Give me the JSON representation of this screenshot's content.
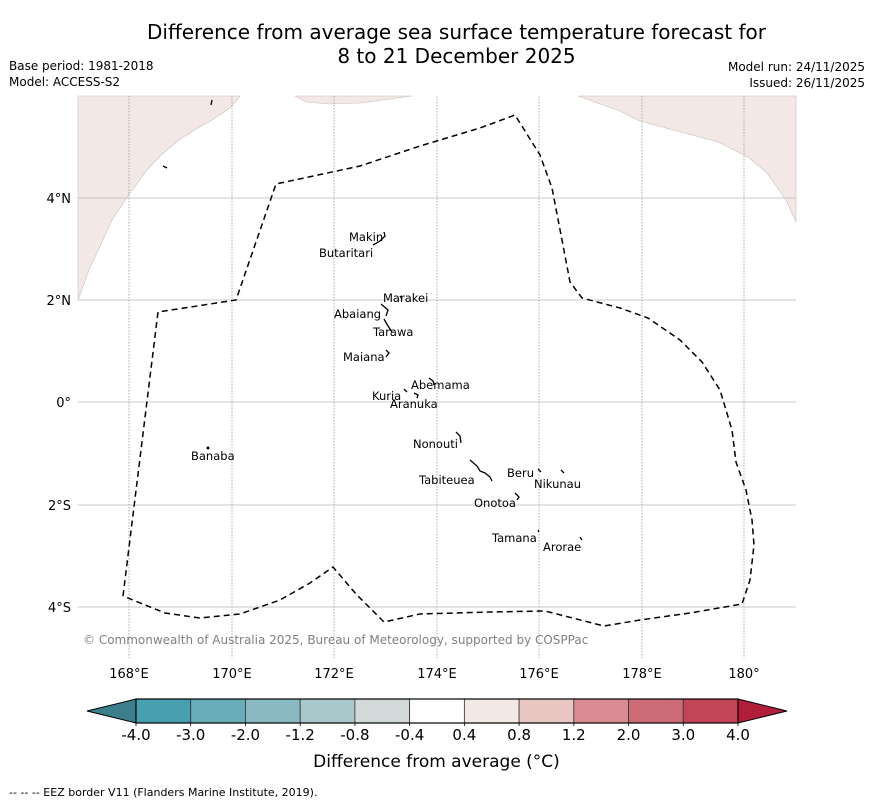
{
  "header": {
    "title_line1": "Difference from average sea surface temperature forecast for",
    "title_line2": "8 to 21 December 2025",
    "base_period": "Base period: 1981-2018",
    "model": "Model: ACCESS-S2",
    "model_run": "Model run: 24/11/2025",
    "issued": "Issued: 26/11/2025"
  },
  "map": {
    "land_color": "#f3e8e6",
    "copyright": "© Commonwealth of Australia 2025, Bureau of Meteorology, supported by COSPPac",
    "lon_ticks": [
      "168°E",
      "170°E",
      "172°E",
      "174°E",
      "176°E",
      "178°E",
      "180°"
    ],
    "lat_ticks": [
      "4°N",
      "2°N",
      "0°",
      "2°S",
      "4°S"
    ],
    "islands": [
      {
        "name": "Makin"
      },
      {
        "name": "Butaritari"
      },
      {
        "name": "Marakei"
      },
      {
        "name": "Abaiang"
      },
      {
        "name": "Tarawa"
      },
      {
        "name": "Maiana"
      },
      {
        "name": "Abemama"
      },
      {
        "name": "Kuria"
      },
      {
        "name": "Aranuka"
      },
      {
        "name": "Banaba"
      },
      {
        "name": "Nonouti"
      },
      {
        "name": "Tabiteuea"
      },
      {
        "name": "Beru"
      },
      {
        "name": "Nikunau"
      },
      {
        "name": "Onotoa"
      },
      {
        "name": "Tamana"
      },
      {
        "name": "Arorae"
      }
    ]
  },
  "colorbar": {
    "label": "Difference from average (°C)",
    "ticks": [
      "-4.0",
      "-3.0",
      "-2.0",
      "-1.2",
      "-0.8",
      "-0.4",
      "0.4",
      "0.8",
      "1.2",
      "2.0",
      "3.0",
      "4.0"
    ],
    "under_color": "#3b7f8c",
    "over_color": "#b01e3a",
    "colors": [
      "#46a0b0",
      "#69adba",
      "#8ab9c4",
      "#aac8cc",
      "#d3d8d8",
      "#ffffff",
      "#f2e8e6",
      "#e8c6c2",
      "#d98c94",
      "#cc6a76",
      "#c24556"
    ]
  },
  "footer": {
    "eez_note": "--  --  -- EEZ border V11 (Flanders Marine Institute, 2019)."
  }
}
